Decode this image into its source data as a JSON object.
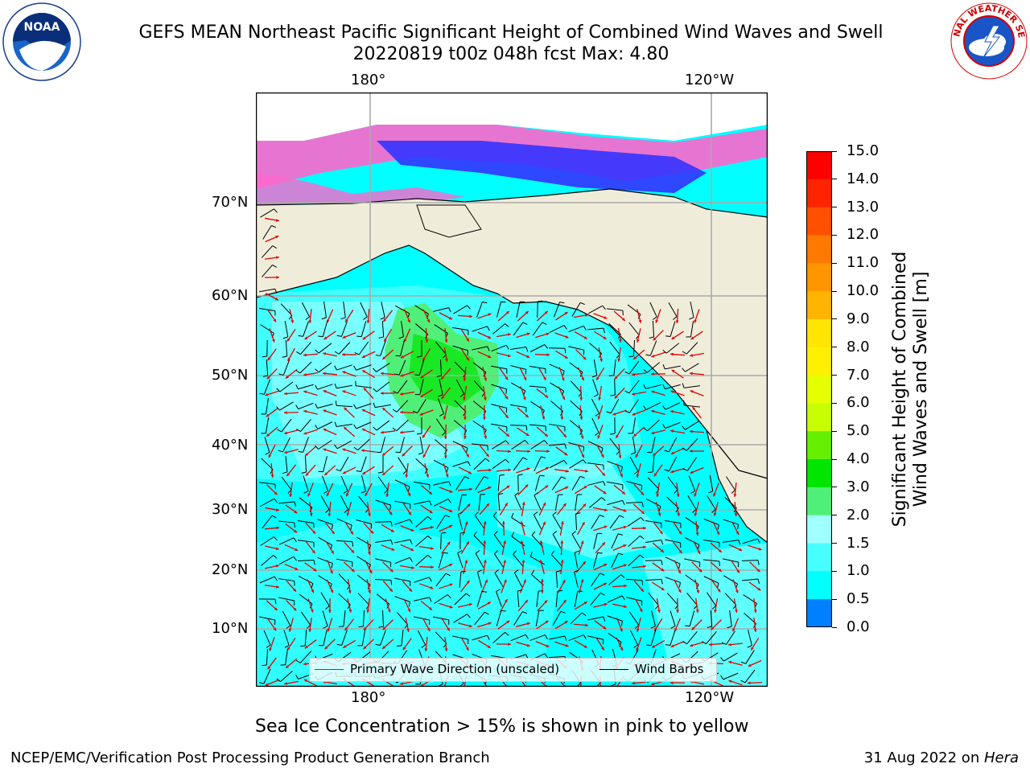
{
  "title": {
    "line1": "GEFS MEAN Northeast Pacific Significant Height of Combined Wind Waves and Swell",
    "line2": "20220819 t00z 048h fcst   Max: 4.80"
  },
  "logos": {
    "left": {
      "text": "NOAA",
      "ring_text": "NATIONAL OCEANIC AND ATMOSPHERIC ADMINISTRATION · U.S. DEPARTMENT OF COMMERCE"
    },
    "right": {
      "ring_text": "NATIONAL WEATHER SERVICE"
    }
  },
  "axes": {
    "top_ticks": [
      "180°",
      "120°W"
    ],
    "bottom_ticks": [
      "180°",
      "120°W"
    ],
    "left_ticks": [
      "70°N",
      "60°N",
      "50°N",
      "40°N",
      "30°N",
      "20°N",
      "10°N"
    ]
  },
  "legend": {
    "wave_label": "Primary Wave Direction (unscaled)",
    "wave_color": "#ff0000",
    "barb_label": "Wind Barbs",
    "barb_color": "#000000"
  },
  "colorbar": {
    "label_line1": "Significant Height of Combined",
    "label_line2": "Wind Waves and Swell [m]",
    "ticks": [
      "15.0",
      "14.0",
      "13.0",
      "12.0",
      "11.0",
      "10.0",
      "9.0",
      "8.0",
      "7.0",
      "6.0",
      "5.0",
      "4.0",
      "3.0",
      "2.0",
      "1.5",
      "1.0",
      "0.5",
      "0.0"
    ],
    "colors": [
      "#ff0000",
      "#ff2400",
      "#ff5000",
      "#ff7800",
      "#ff9600",
      "#ffb400",
      "#ffe600",
      "#fff000",
      "#e6ff00",
      "#c8ff00",
      "#64f000",
      "#00e600",
      "#50f078",
      "#a0ffff",
      "#46ffff",
      "#00ffff",
      "#0080ff",
      "#0000ff"
    ]
  },
  "map": {
    "land_color": "#efedda",
    "ocean_color": "#00ffff",
    "ice_note": "Sea Ice Concentration > 15% is shown in pink to yellow"
  },
  "footer": {
    "left": "NCEP/EMC/Verification Post Processing Product Generation Branch",
    "date": "31 Aug 2022 on ",
    "machine": "Hera"
  }
}
